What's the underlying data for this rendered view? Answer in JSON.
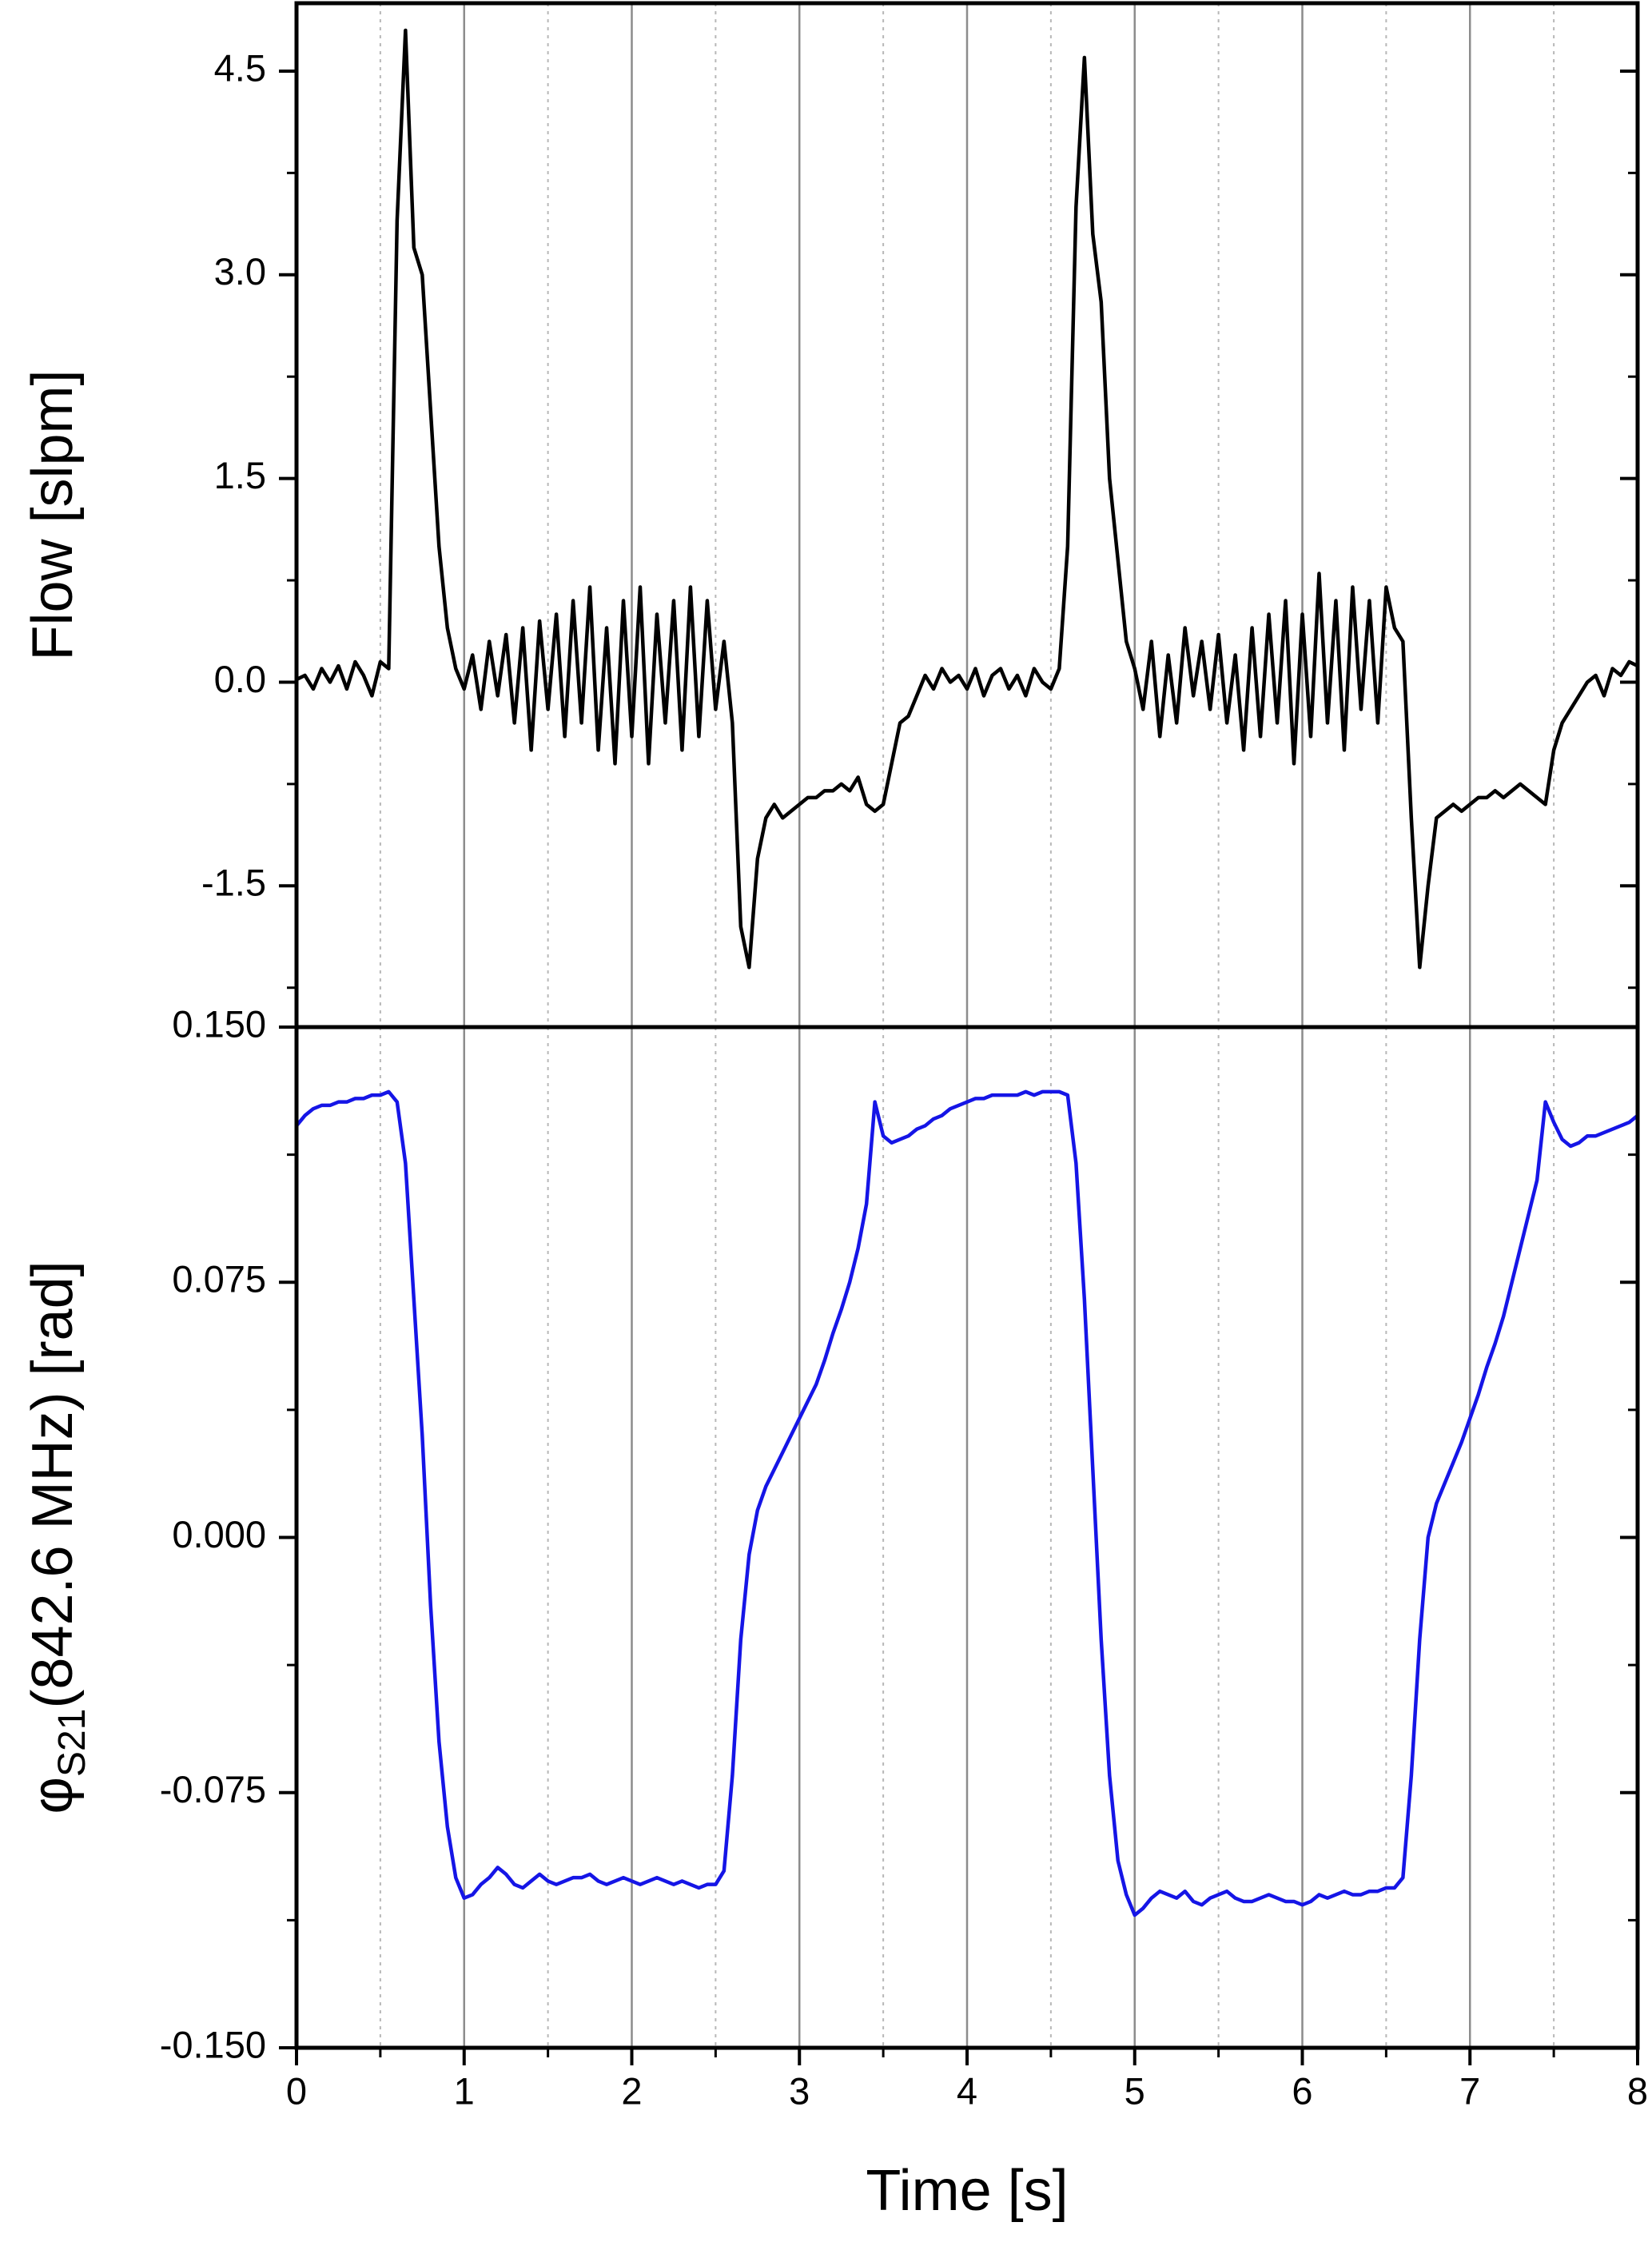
{
  "chart_data": [
    {
      "type": "line",
      "ylabel": "Flow [slpm]",
      "xlim": [
        0,
        8
      ],
      "xticks": [
        0,
        1,
        2,
        3,
        4,
        5,
        6,
        7,
        8
      ],
      "xminorticks": [
        0.5,
        1.5,
        2.5,
        3.5,
        4.5,
        5.5,
        6.5,
        7.5
      ],
      "ylim": [
        -2.54,
        5.0
      ],
      "yticks": [
        -1.5,
        {
          "value": 0,
          "label": "0.0"
        },
        1.5,
        {
          "value": 3,
          "label": "3.0"
        },
        4.5
      ],
      "yminorticks": [
        -2.25,
        -0.75,
        0.75,
        2.25,
        3.75
      ],
      "grid": true,
      "x": [
        0,
        0.05,
        0.1,
        0.15,
        0.2,
        0.25,
        0.3,
        0.35,
        0.4,
        0.45,
        0.5,
        0.55,
        0.6,
        0.65,
        0.7,
        0.75,
        0.8,
        0.85,
        0.9,
        0.95,
        1,
        1.05,
        1.1,
        1.15,
        1.2,
        1.25,
        1.3,
        1.35,
        1.4,
        1.45,
        1.5,
        1.55,
        1.6,
        1.65,
        1.7,
        1.75,
        1.8,
        1.85,
        1.9,
        1.95,
        2,
        2.05,
        2.1,
        2.15,
        2.2,
        2.25,
        2.3,
        2.35,
        2.4,
        2.45,
        2.5,
        2.55,
        2.6,
        2.65,
        2.7,
        2.75,
        2.8,
        2.85,
        2.9,
        2.95,
        3,
        3.05,
        3.1,
        3.15,
        3.2,
        3.25,
        3.3,
        3.35,
        3.4,
        3.45,
        3.5,
        3.55,
        3.6,
        3.65,
        3.7,
        3.75,
        3.8,
        3.85,
        3.9,
        3.95,
        4,
        4.05,
        4.1,
        4.15,
        4.2,
        4.25,
        4.3,
        4.35,
        4.4,
        4.45,
        4.5,
        4.55,
        4.6,
        4.65,
        4.7,
        4.75,
        4.8,
        4.85,
        4.9,
        4.95,
        5,
        5.05,
        5.1,
        5.15,
        5.2,
        5.25,
        5.3,
        5.35,
        5.4,
        5.45,
        5.5,
        5.55,
        5.6,
        5.65,
        5.7,
        5.75,
        5.8,
        5.85,
        5.9,
        5.95,
        6,
        6.05,
        6.1,
        6.15,
        6.2,
        6.25,
        6.3,
        6.35,
        6.4,
        6.45,
        6.5,
        6.55,
        6.6,
        6.65,
        6.7,
        6.75,
        6.8,
        6.85,
        6.9,
        6.95,
        7,
        7.05,
        7.1,
        7.15,
        7.2,
        7.25,
        7.3,
        7.35,
        7.4,
        7.45,
        7.5,
        7.55,
        7.6,
        7.65,
        7.7,
        7.75,
        7.8,
        7.85,
        7.9,
        7.95,
        8
      ],
      "series": [
        {
          "color": "#000000",
          "values": [
            0.02,
            0.05,
            -0.05,
            0.1,
            0,
            0.12,
            -0.05,
            0.15,
            0.05,
            -0.1,
            0.15,
            0.1,
            3.4,
            4.8,
            3.2,
            3.0,
            2.0,
            1.0,
            0.4,
            0.1,
            -0.05,
            0.2,
            -0.2,
            0.3,
            -0.1,
            0.35,
            -0.3,
            0.4,
            -0.5,
            0.45,
            -0.2,
            0.5,
            -0.4,
            0.6,
            -0.3,
            0.7,
            -0.5,
            0.4,
            -0.6,
            0.6,
            -0.4,
            0.7,
            -0.6,
            0.5,
            -0.3,
            0.6,
            -0.5,
            0.7,
            -0.4,
            0.6,
            -0.2,
            0.3,
            -0.3,
            -1.8,
            -2.1,
            -1.3,
            -1.0,
            -0.9,
            -1.0,
            -0.95,
            -0.9,
            -0.85,
            -0.85,
            -0.8,
            -0.8,
            -0.75,
            -0.8,
            -0.7,
            -0.9,
            -0.95,
            -0.9,
            -0.6,
            -0.3,
            -0.25,
            -0.1,
            0.05,
            -0.05,
            0.1,
            0,
            0.05,
            -0.05,
            0.1,
            -0.1,
            0.05,
            0.1,
            -0.05,
            0.05,
            -0.1,
            0.1,
            0,
            -0.05,
            0.1,
            1.0,
            3.5,
            4.6,
            3.3,
            2.8,
            1.5,
            0.9,
            0.3,
            0.1,
            -0.2,
            0.3,
            -0.4,
            0.2,
            -0.3,
            0.4,
            -0.1,
            0.3,
            -0.2,
            0.35,
            -0.3,
            0.2,
            -0.5,
            0.4,
            -0.4,
            0.5,
            -0.3,
            0.6,
            -0.6,
            0.5,
            -0.4,
            0.8,
            -0.3,
            0.6,
            -0.5,
            0.7,
            -0.2,
            0.6,
            -0.3,
            0.7,
            0.4,
            0.3,
            -1.0,
            -2.1,
            -1.5,
            -1.0,
            -0.95,
            -0.9,
            -0.95,
            -0.9,
            -0.85,
            -0.85,
            -0.8,
            -0.85,
            -0.8,
            -0.75,
            -0.8,
            -0.85,
            -0.9,
            -0.5,
            -0.3,
            -0.2,
            -0.1,
            0,
            0.05,
            -0.1,
            0.1,
            0.05,
            0.15,
            0.12
          ]
        }
      ]
    },
    {
      "type": "line",
      "ylabel": {
        "symbol": "φ",
        "subscript": "S21",
        "text": "(842.6 MHz) [rad]"
      },
      "xlabel": "Time [s]",
      "xlim": [
        0,
        8
      ],
      "xticks": [
        0,
        1,
        2,
        3,
        4,
        5,
        6,
        7,
        8
      ],
      "xminorticks": [
        0.5,
        1.5,
        2.5,
        3.5,
        4.5,
        5.5,
        6.5,
        7.5
      ],
      "ylim": [
        -0.15,
        0.15
      ],
      "yticks": [
        {
          "value": -0.15,
          "label": "-0.150"
        },
        {
          "value": -0.075,
          "label": "-0.075"
        },
        {
          "value": 0,
          "label": "0.000"
        },
        {
          "value": 0.075,
          "label": "0.075"
        },
        {
          "value": 0.15,
          "label": "0.150"
        }
      ],
      "yminorticks": [
        -0.1125,
        -0.0375,
        0.0375,
        0.1125
      ],
      "grid": true,
      "x": [
        0,
        0.05,
        0.1,
        0.15,
        0.2,
        0.25,
        0.3,
        0.35,
        0.4,
        0.45,
        0.5,
        0.55,
        0.6,
        0.65,
        0.7,
        0.75,
        0.8,
        0.85,
        0.9,
        0.95,
        1,
        1.05,
        1.1,
        1.15,
        1.2,
        1.25,
        1.3,
        1.35,
        1.4,
        1.45,
        1.5,
        1.55,
        1.6,
        1.65,
        1.7,
        1.75,
        1.8,
        1.85,
        1.9,
        1.95,
        2,
        2.05,
        2.1,
        2.15,
        2.2,
        2.25,
        2.3,
        2.35,
        2.4,
        2.45,
        2.5,
        2.55,
        2.6,
        2.65,
        2.7,
        2.75,
        2.8,
        2.85,
        2.9,
        2.95,
        3,
        3.05,
        3.1,
        3.15,
        3.2,
        3.25,
        3.3,
        3.35,
        3.4,
        3.45,
        3.5,
        3.55,
        3.6,
        3.65,
        3.7,
        3.75,
        3.8,
        3.85,
        3.9,
        3.95,
        4,
        4.05,
        4.1,
        4.15,
        4.2,
        4.25,
        4.3,
        4.35,
        4.4,
        4.45,
        4.5,
        4.55,
        4.6,
        4.65,
        4.7,
        4.75,
        4.8,
        4.85,
        4.9,
        4.95,
        5,
        5.05,
        5.1,
        5.15,
        5.2,
        5.25,
        5.3,
        5.35,
        5.4,
        5.45,
        5.5,
        5.55,
        5.6,
        5.65,
        5.7,
        5.75,
        5.8,
        5.85,
        5.9,
        5.95,
        6,
        6.05,
        6.1,
        6.15,
        6.2,
        6.25,
        6.3,
        6.35,
        6.4,
        6.45,
        6.5,
        6.55,
        6.6,
        6.65,
        6.7,
        6.75,
        6.8,
        6.85,
        6.9,
        6.95,
        7,
        7.05,
        7.1,
        7.15,
        7.2,
        7.25,
        7.3,
        7.35,
        7.4,
        7.45,
        7.5,
        7.55,
        7.6,
        7.65,
        7.7,
        7.75,
        7.8,
        7.85,
        7.9,
        7.95,
        8
      ],
      "series": [
        {
          "color": "#1515e6",
          "values": [
            0.121,
            0.124,
            0.126,
            0.127,
            0.127,
            0.128,
            0.128,
            0.129,
            0.129,
            0.13,
            0.13,
            0.131,
            0.128,
            0.11,
            0.07,
            0.03,
            -0.02,
            -0.06,
            -0.085,
            -0.1,
            -0.106,
            -0.105,
            -0.102,
            -0.1,
            -0.097,
            -0.099,
            -0.102,
            -0.103,
            -0.101,
            -0.099,
            -0.101,
            -0.102,
            -0.101,
            -0.1,
            -0.1,
            -0.099,
            -0.101,
            -0.102,
            -0.101,
            -0.1,
            -0.101,
            -0.102,
            -0.101,
            -0.1,
            -0.101,
            -0.102,
            -0.101,
            -0.102,
            -0.103,
            -0.102,
            -0.102,
            -0.098,
            -0.07,
            -0.03,
            -0.005,
            0.008,
            0.015,
            0.02,
            0.025,
            0.03,
            0.035,
            0.04,
            0.045,
            0.052,
            0.06,
            0.067,
            0.075,
            0.085,
            0.098,
            0.128,
            0.118,
            0.116,
            0.117,
            0.118,
            0.12,
            0.121,
            0.123,
            0.124,
            0.126,
            0.127,
            0.128,
            0.129,
            0.129,
            0.13,
            0.13,
            0.13,
            0.13,
            0.131,
            0.13,
            0.131,
            0.131,
            0.131,
            0.13,
            0.11,
            0.07,
            0.02,
            -0.03,
            -0.07,
            -0.095,
            -0.105,
            -0.111,
            -0.109,
            -0.106,
            -0.104,
            -0.105,
            -0.106,
            -0.104,
            -0.107,
            -0.108,
            -0.106,
            -0.105,
            -0.104,
            -0.106,
            -0.107,
            -0.107,
            -0.106,
            -0.105,
            -0.106,
            -0.107,
            -0.107,
            -0.108,
            -0.107,
            -0.105,
            -0.106,
            -0.105,
            -0.104,
            -0.105,
            -0.105,
            -0.104,
            -0.104,
            -0.103,
            -0.103,
            -0.1,
            -0.07,
            -0.03,
            0,
            0.01,
            0.016,
            0.022,
            0.028,
            0.035,
            0.042,
            0.05,
            0.057,
            0.065,
            0.075,
            0.085,
            0.095,
            0.105,
            0.128,
            0.122,
            0.117,
            0.115,
            0.116,
            0.118,
            0.118,
            0.119,
            0.12,
            0.121,
            0.122,
            0.124
          ]
        }
      ]
    }
  ]
}
